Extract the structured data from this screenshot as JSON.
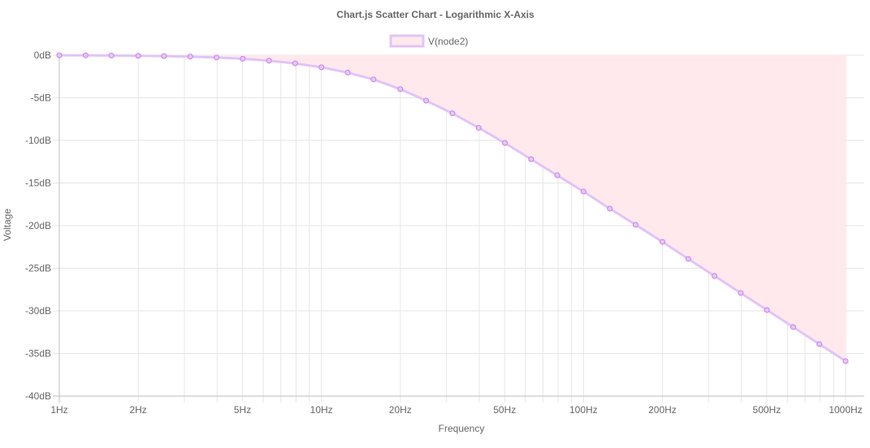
{
  "chart_data": {
    "type": "scatter",
    "title": "Chart.js Scatter Chart - Logarithmic X-Axis",
    "xlabel": "Frequency",
    "ylabel": "Voltage",
    "x_scale": "log",
    "xlim": [
      1,
      1000
    ],
    "ylim": [
      -40,
      0
    ],
    "x_ticks": [
      1,
      2,
      5,
      10,
      20,
      50,
      100,
      200,
      500,
      1000
    ],
    "x_tick_labels": [
      "1Hz",
      "2Hz",
      "5Hz",
      "10Hz",
      "20Hz",
      "50Hz",
      "100Hz",
      "200Hz",
      "500Hz",
      "1000Hz"
    ],
    "y_ticks": [
      0,
      -5,
      -10,
      -15,
      -20,
      -25,
      -30,
      -35,
      -40
    ],
    "y_tick_labels": [
      "0dB",
      "-5dB",
      "-10dB",
      "-15dB",
      "-20dB",
      "-25dB",
      "-30dB",
      "-35dB",
      "-40dB"
    ],
    "grid": true,
    "legend": "top-center",
    "series": [
      {
        "name": "V(node2)",
        "line_color": "#e0c4f7",
        "fill_color": "#ffe9ec",
        "point_color": "#c77fe9",
        "points": [
          {
            "x": 1,
            "y": -0.01
          },
          {
            "x": 1.26,
            "y": -0.02
          },
          {
            "x": 1.58,
            "y": -0.04
          },
          {
            "x": 2,
            "y": -0.07
          },
          {
            "x": 2.51,
            "y": -0.11
          },
          {
            "x": 3.16,
            "y": -0.17
          },
          {
            "x": 3.98,
            "y": -0.27
          },
          {
            "x": 5.01,
            "y": -0.42
          },
          {
            "x": 6.31,
            "y": -0.64
          },
          {
            "x": 7.94,
            "y": -0.96
          },
          {
            "x": 10,
            "y": -1.42
          },
          {
            "x": 12.6,
            "y": -2.04
          },
          {
            "x": 15.8,
            "y": -2.84
          },
          {
            "x": 20,
            "y": -3.98
          },
          {
            "x": 25.1,
            "y": -5.33
          },
          {
            "x": 31.6,
            "y": -6.82
          },
          {
            "x": 39.8,
            "y": -8.52
          },
          {
            "x": 50.1,
            "y": -10.3
          },
          {
            "x": 63.1,
            "y": -12.2
          },
          {
            "x": 79.4,
            "y": -14.1
          },
          {
            "x": 100,
            "y": -16.0
          },
          {
            "x": 126,
            "y": -18.0
          },
          {
            "x": 158,
            "y": -19.9
          },
          {
            "x": 200,
            "y": -21.9
          },
          {
            "x": 251,
            "y": -23.9
          },
          {
            "x": 316,
            "y": -25.9
          },
          {
            "x": 398,
            "y": -27.9
          },
          {
            "x": 501,
            "y": -29.9
          },
          {
            "x": 631,
            "y": -31.9
          },
          {
            "x": 794,
            "y": -33.9
          },
          {
            "x": 1000,
            "y": -35.9
          }
        ]
      }
    ]
  }
}
